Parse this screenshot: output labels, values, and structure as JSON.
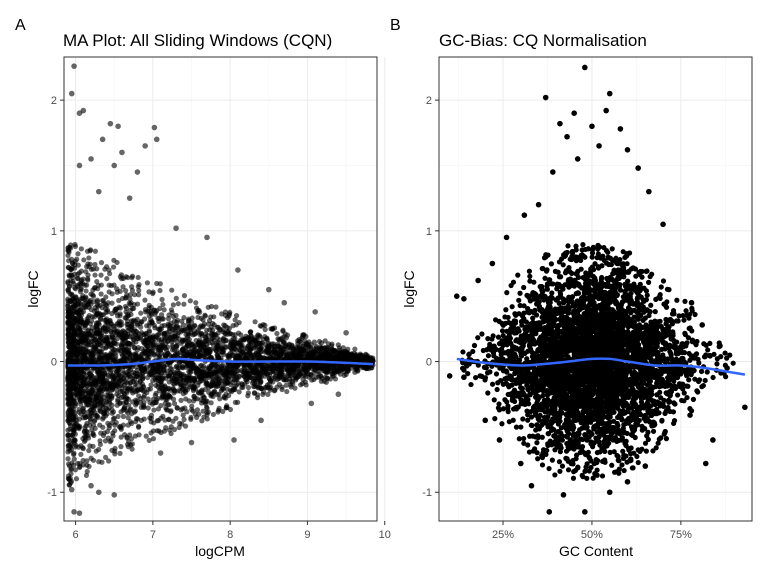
{
  "chart_data": [
    {
      "type": "scatter",
      "tag": "A",
      "title": "MA Plot: All Sliding Windows (CQN)",
      "xlabel": "logCPM",
      "ylabel": "logFC",
      "xlim": [
        5.85,
        9.9
      ],
      "ylim": [
        -1.22,
        2.33
      ],
      "xticks": [
        6,
        7,
        8,
        9,
        10
      ],
      "xtick_labels": [
        "6",
        "7",
        "8",
        "9",
        "10"
      ],
      "yticks": [
        -1,
        0,
        1,
        2
      ],
      "ytick_labels": [
        "-1",
        "0",
        "1",
        "2"
      ],
      "grid": true,
      "point_color": "#000000",
      "point_opacity": 0.6,
      "point_count_note": "dense cloud",
      "points": [
        {
          "x": 5.98,
          "y": 2.26
        },
        {
          "x": 5.95,
          "y": 2.05
        },
        {
          "x": 6.05,
          "y": 1.9
        },
        {
          "x": 6.1,
          "y": 1.92
        },
        {
          "x": 6.45,
          "y": 1.82
        },
        {
          "x": 6.55,
          "y": 1.8
        },
        {
          "x": 7.02,
          "y": 1.79
        },
        {
          "x": 6.9,
          "y": 1.65
        },
        {
          "x": 7.05,
          "y": 1.7
        },
        {
          "x": 6.35,
          "y": 1.7
        },
        {
          "x": 6.2,
          "y": 1.55
        },
        {
          "x": 6.5,
          "y": 1.5
        },
        {
          "x": 6.05,
          "y": 1.5
        },
        {
          "x": 6.6,
          "y": 1.6
        },
        {
          "x": 6.8,
          "y": 1.45
        },
        {
          "x": 6.3,
          "y": 1.3
        },
        {
          "x": 6.7,
          "y": 1.25
        },
        {
          "x": 7.3,
          "y": 1.02
        },
        {
          "x": 7.7,
          "y": 0.95
        },
        {
          "x": 8.1,
          "y": 0.7
        },
        {
          "x": 8.5,
          "y": 0.55
        },
        {
          "x": 8.7,
          "y": 0.45
        },
        {
          "x": 9.1,
          "y": 0.38
        },
        {
          "x": 9.5,
          "y": 0.22
        },
        {
          "x": 5.98,
          "y": -1.15
        },
        {
          "x": 6.05,
          "y": -1.16
        },
        {
          "x": 5.95,
          "y": -0.98
        },
        {
          "x": 6.3,
          "y": -1.0
        },
        {
          "x": 6.5,
          "y": -1.02
        },
        {
          "x": 6.2,
          "y": -0.95
        },
        {
          "x": 7.1,
          "y": -0.7
        },
        {
          "x": 7.5,
          "y": -0.62
        },
        {
          "x": 8.05,
          "y": -0.6
        },
        {
          "x": 8.4,
          "y": -0.45
        },
        {
          "x": 9.05,
          "y": -0.32
        },
        {
          "x": 9.4,
          "y": -0.25
        }
      ],
      "cloud": {
        "x_range": [
          5.9,
          9.85
        ],
        "center": 0.0,
        "spread_at": [
          [
            5.9,
            0.95
          ],
          [
            6.5,
            0.78
          ],
          [
            7.0,
            0.62
          ],
          [
            7.5,
            0.5
          ],
          [
            8.0,
            0.38
          ],
          [
            8.5,
            0.27
          ],
          [
            9.0,
            0.2
          ],
          [
            9.5,
            0.12
          ],
          [
            9.85,
            0.05
          ]
        ]
      },
      "trend": {
        "name": "",
        "color": "#3366ff",
        "x": [
          5.9,
          6.3,
          6.7,
          7.0,
          7.3,
          7.6,
          8.0,
          8.5,
          9.0,
          9.5,
          9.85
        ],
        "y": [
          -0.03,
          -0.03,
          -0.02,
          0.0,
          0.02,
          0.01,
          0.0,
          0.0,
          0.0,
          -0.01,
          -0.02
        ]
      }
    },
    {
      "type": "scatter",
      "tag": "B",
      "title": "GC-Bias: CQ Normalisation",
      "xlabel": "GC Content",
      "ylabel": "logFC",
      "xlim": [
        0.07,
        0.95
      ],
      "ylim": [
        -1.22,
        2.33
      ],
      "xticks": [
        0.25,
        0.5,
        0.75
      ],
      "xtick_labels": [
        "25%",
        "50%",
        "75%"
      ],
      "yticks": [
        -1,
        0,
        1,
        2
      ],
      "ytick_labels": [
        "-1",
        "0",
        "1",
        "2"
      ],
      "grid": true,
      "point_color": "#000000",
      "point_opacity": 1.0,
      "points": [
        {
          "x": 0.48,
          "y": 2.25
        },
        {
          "x": 0.37,
          "y": 2.02
        },
        {
          "x": 0.55,
          "y": 2.05
        },
        {
          "x": 0.54,
          "y": 1.92
        },
        {
          "x": 0.45,
          "y": 1.9
        },
        {
          "x": 0.41,
          "y": 1.82
        },
        {
          "x": 0.58,
          "y": 1.78
        },
        {
          "x": 0.43,
          "y": 1.72
        },
        {
          "x": 0.5,
          "y": 1.8
        },
        {
          "x": 0.52,
          "y": 1.65
        },
        {
          "x": 0.6,
          "y": 1.62
        },
        {
          "x": 0.46,
          "y": 1.55
        },
        {
          "x": 0.39,
          "y": 1.45
        },
        {
          "x": 0.63,
          "y": 1.48
        },
        {
          "x": 0.66,
          "y": 1.3
        },
        {
          "x": 0.35,
          "y": 1.2
        },
        {
          "x": 0.31,
          "y": 1.12
        },
        {
          "x": 0.7,
          "y": 1.05
        },
        {
          "x": 0.26,
          "y": 0.95
        },
        {
          "x": 0.22,
          "y": 0.75
        },
        {
          "x": 0.18,
          "y": 0.62
        },
        {
          "x": 0.14,
          "y": 0.48
        },
        {
          "x": 0.12,
          "y": 0.5
        },
        {
          "x": 0.1,
          "y": -0.11
        },
        {
          "x": 0.14,
          "y": -0.12
        },
        {
          "x": 0.93,
          "y": -0.35
        },
        {
          "x": 0.88,
          "y": -0.05
        },
        {
          "x": 0.86,
          "y": 0.12
        },
        {
          "x": 0.81,
          "y": 0.28
        },
        {
          "x": 0.78,
          "y": 0.45
        },
        {
          "x": 0.84,
          "y": -0.6
        },
        {
          "x": 0.82,
          "y": -0.78
        },
        {
          "x": 0.38,
          "y": -1.15
        },
        {
          "x": 0.48,
          "y": -1.15
        },
        {
          "x": 0.42,
          "y": -1.02
        },
        {
          "x": 0.55,
          "y": -1.0
        },
        {
          "x": 0.33,
          "y": -0.95
        },
        {
          "x": 0.3,
          "y": -0.78
        },
        {
          "x": 0.6,
          "y": -0.92
        },
        {
          "x": 0.65,
          "y": -0.8
        },
        {
          "x": 0.24,
          "y": -0.6
        },
        {
          "x": 0.2,
          "y": -0.45
        }
      ],
      "cloud": {
        "x_range": [
          0.13,
          0.9
        ],
        "center": 0.0,
        "spread_at": [
          [
            0.13,
            0.1
          ],
          [
            0.2,
            0.35
          ],
          [
            0.3,
            0.7
          ],
          [
            0.4,
            0.88
          ],
          [
            0.5,
            0.92
          ],
          [
            0.6,
            0.85
          ],
          [
            0.7,
            0.62
          ],
          [
            0.8,
            0.38
          ],
          [
            0.9,
            0.12
          ]
        ]
      },
      "trend": {
        "name": "",
        "color": "#3366ff",
        "x": [
          0.12,
          0.2,
          0.3,
          0.4,
          0.5,
          0.55,
          0.6,
          0.68,
          0.75,
          0.82,
          0.93
        ],
        "y": [
          0.02,
          -0.01,
          -0.03,
          -0.01,
          0.02,
          0.02,
          0.0,
          -0.03,
          -0.03,
          -0.05,
          -0.1
        ]
      }
    }
  ]
}
